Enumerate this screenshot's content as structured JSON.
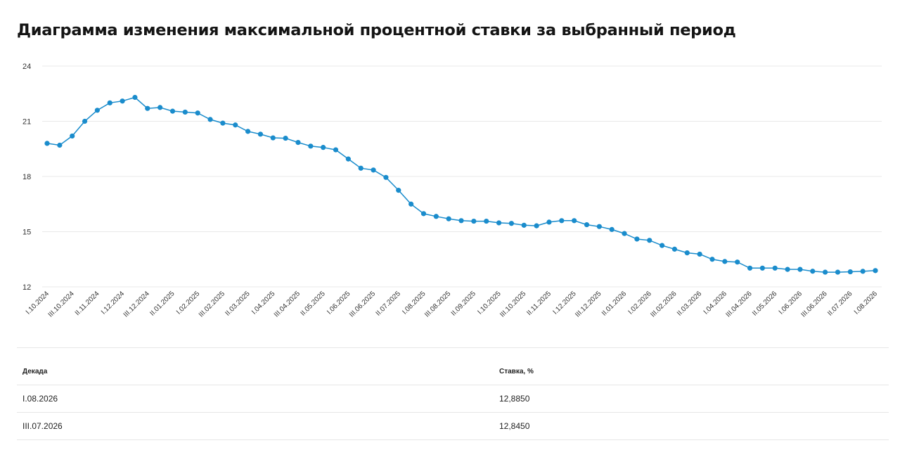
{
  "page": {
    "title": "Диаграмма изменения максимальной процентной ставки за выбранный период"
  },
  "chart_data": {
    "type": "line",
    "title": "",
    "xlabel": "",
    "ylabel": "",
    "ylim": [
      12,
      24
    ],
    "y_ticks": [
      "12",
      "15",
      "18",
      "21",
      "24"
    ],
    "grid": true,
    "legend": "none",
    "line_color": "#1a8ccc",
    "x_tick_labels": [
      "I.10.2024",
      "III.10.2024",
      "II.11.2024",
      "I.12.2024",
      "III.12.2024",
      "II.01.2025",
      "I.02.2025",
      "III.02.2025",
      "II.03.2025",
      "I.04.2025",
      "III.04.2025",
      "II.05.2025",
      "I.06.2025",
      "III.06.2025",
      "II.07.2025",
      "I.08.2025",
      "III.08.2025",
      "II.09.2025",
      "I.10.2025",
      "III.10.2025",
      "II.11.2025",
      "I.12.2025",
      "III.12.2025",
      "II.01.2026",
      "I.02.2026",
      "III.02.2026",
      "II.03.2026",
      "I.04.2026",
      "III.04.2026",
      "II.05.2026",
      "I.06.2026",
      "III.06.2026",
      "II.07.2026",
      "I.08.2026"
    ],
    "x": [
      "I.10.2024",
      "II.10.2024",
      "III.10.2024",
      "I.11.2024",
      "II.11.2024",
      "III.11.2024",
      "I.12.2024",
      "II.12.2024",
      "III.12.2024",
      "I.01.2025",
      "II.01.2025",
      "III.01.2025",
      "I.02.2025",
      "II.02.2025",
      "III.02.2025",
      "I.03.2025",
      "II.03.2025",
      "III.03.2025",
      "I.04.2025",
      "II.04.2025",
      "III.04.2025",
      "I.05.2025",
      "II.05.2025",
      "III.05.2025",
      "I.06.2025",
      "II.06.2025",
      "III.06.2025",
      "I.07.2025",
      "II.07.2025",
      "III.07.2025",
      "I.08.2025",
      "II.08.2025",
      "III.08.2025",
      "I.09.2025",
      "II.09.2025",
      "III.09.2025",
      "I.10.2025",
      "II.10.2025",
      "III.10.2025",
      "I.11.2025",
      "II.11.2025",
      "III.11.2025",
      "I.12.2025",
      "II.12.2025",
      "III.12.2025",
      "I.01.2026",
      "II.01.2026",
      "III.01.2026",
      "I.02.2026",
      "II.02.2026",
      "III.02.2026",
      "I.03.2026",
      "II.03.2026",
      "III.03.2026",
      "I.04.2026",
      "II.04.2026",
      "III.04.2026",
      "I.05.2026",
      "II.05.2026",
      "III.05.2026",
      "I.06.2026",
      "II.06.2026",
      "III.06.2026",
      "I.07.2026",
      "II.07.2026",
      "III.07.2026",
      "I.08.2026"
    ],
    "series": [
      {
        "values": [
          19.8,
          19.7,
          20.2,
          21.0,
          21.6,
          22.0,
          22.1,
          22.3,
          21.7,
          21.75,
          21.55,
          21.5,
          21.45,
          21.1,
          20.9,
          20.8,
          20.45,
          20.3,
          20.1,
          20.08,
          19.85,
          19.65,
          19.58,
          19.45,
          18.95,
          18.45,
          18.35,
          17.95,
          17.25,
          16.5,
          15.98,
          15.83,
          15.7,
          15.6,
          15.57,
          15.57,
          15.48,
          15.45,
          15.35,
          15.32,
          15.52,
          15.6,
          15.6,
          15.38,
          15.28,
          15.12,
          14.9,
          14.6,
          14.53,
          14.25,
          14.05,
          13.85,
          13.78,
          13.5,
          13.38,
          13.35,
          13.02,
          13.02,
          13.02,
          12.95,
          12.95,
          12.85,
          12.8,
          12.8,
          12.82,
          12.845,
          12.885
        ]
      }
    ]
  },
  "table": {
    "headers": {
      "decade": "Декада",
      "rate": "Ставка, %"
    },
    "rows": [
      {
        "decade": "I.08.2026",
        "rate": "12,8850"
      },
      {
        "decade": "III.07.2026",
        "rate": "12,8450"
      }
    ]
  }
}
